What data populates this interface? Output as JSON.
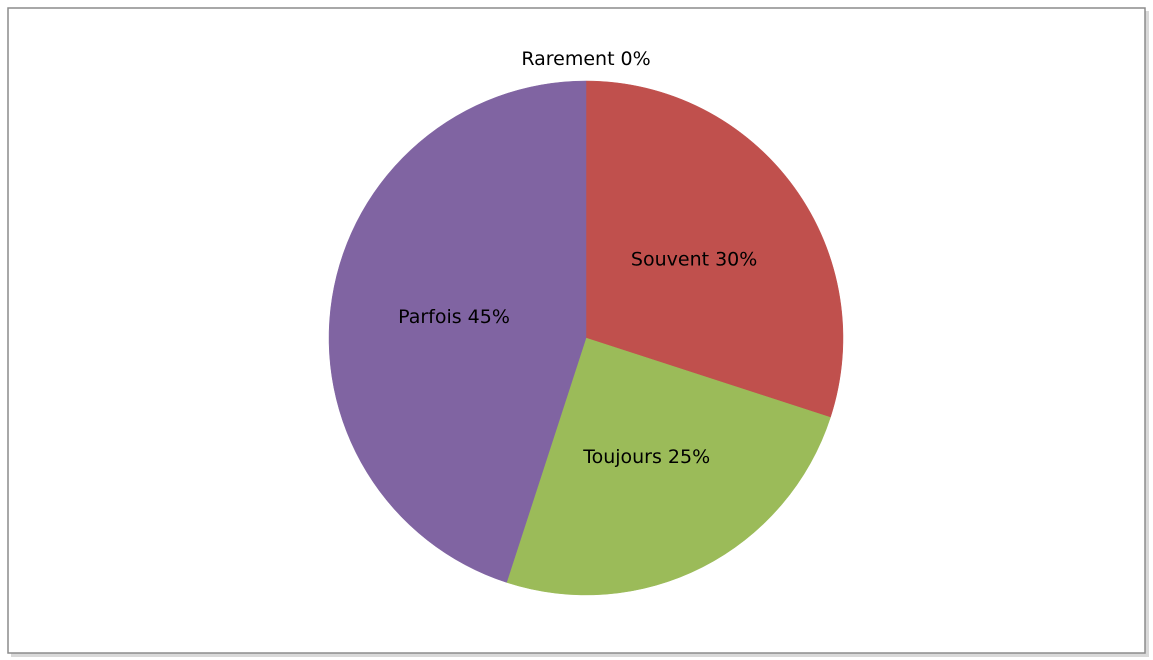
{
  "chart_data": {
    "type": "pie",
    "categories": [
      "Rarement",
      "Souvent",
      "Toujours",
      "Parfois"
    ],
    "values": [
      0,
      30,
      25,
      45
    ],
    "value_labels": [
      "0%",
      "30%",
      "25%",
      "45%"
    ],
    "colors": [
      "#4f81bd",
      "#c0504d",
      "#9bbb59",
      "#8064a2"
    ]
  }
}
